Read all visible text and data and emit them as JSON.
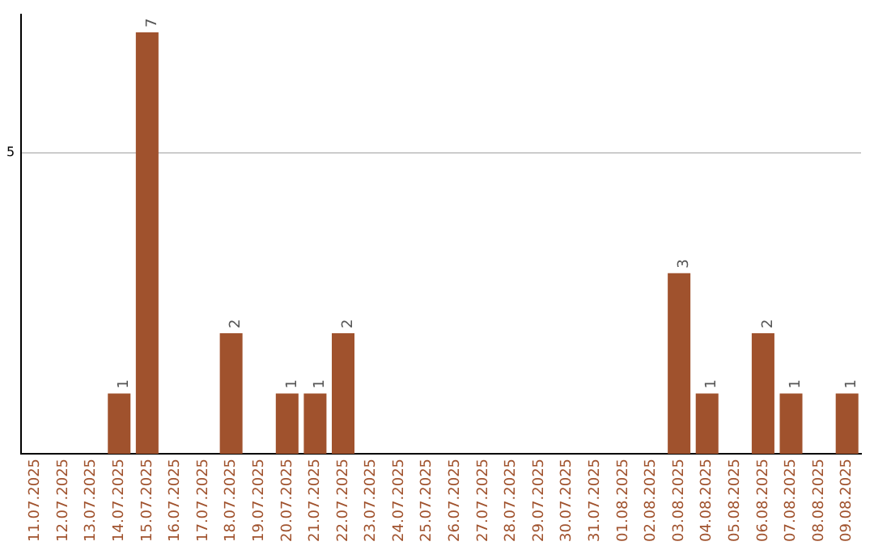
{
  "chart_data": {
    "type": "bar",
    "categories": [
      "11.07.2025",
      "12.07.2025",
      "13.07.2025",
      "14.07.2025",
      "15.07.2025",
      "16.07.2025",
      "17.07.2025",
      "18.07.2025",
      "19.07.2025",
      "20.07.2025",
      "21.07.2025",
      "22.07.2025",
      "23.07.2025",
      "24.07.2025",
      "25.07.2025",
      "26.07.2025",
      "27.07.2025",
      "28.07.2025",
      "29.07.2025",
      "30.07.2025",
      "31.07.2025",
      "01.08.2025",
      "02.08.2025",
      "03.08.2025",
      "04.08.2025",
      "05.08.2025",
      "06.08.2025",
      "07.08.2025",
      "08.08.2025",
      "09.08.2025"
    ],
    "values": [
      0,
      0,
      0,
      1,
      7,
      0,
      0,
      2,
      0,
      1,
      1,
      2,
      0,
      0,
      0,
      0,
      0,
      0,
      0,
      0,
      0,
      0,
      0,
      3,
      1,
      0,
      2,
      1,
      0,
      1
    ],
    "color": "#a0522d",
    "value_labels": [
      null,
      null,
      null,
      "1",
      "7",
      null,
      null,
      "2",
      null,
      "1",
      "1",
      "2",
      null,
      null,
      null,
      null,
      null,
      null,
      null,
      null,
      null,
      null,
      null,
      "3",
      "1",
      null,
      "2",
      "1",
      null,
      "1"
    ],
    "ylim": [
      0,
      7.3
    ],
    "yticks": [
      5
    ],
    "grid": "y",
    "legend": false
  }
}
